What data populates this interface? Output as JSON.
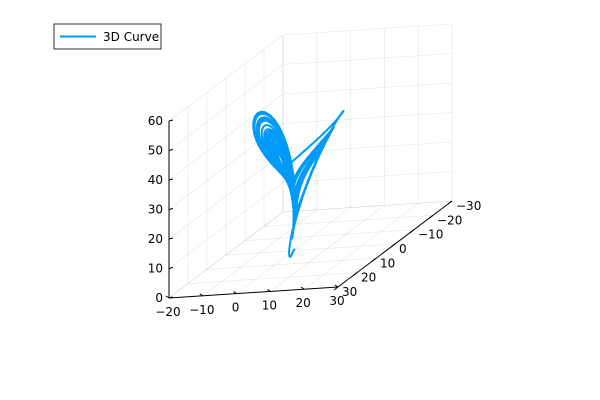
{
  "chart_data": {
    "type": "line",
    "subtype": "3d-curve",
    "title": "",
    "xlabel": "",
    "ylabel": "",
    "zlabel": "",
    "legend": {
      "placement": "top-left",
      "entries": [
        "3D Curve"
      ]
    },
    "grid": true,
    "line_color": "#009AF9",
    "axes": {
      "x": {
        "range": [
          -20,
          30
        ],
        "ticks": [
          -20,
          -10,
          0,
          10,
          20,
          30
        ],
        "tick_labels": [
          "−20",
          "−10",
          "0",
          "10",
          "20",
          "30"
        ]
      },
      "y": {
        "range": [
          -30,
          30
        ],
        "ticks": [
          -30,
          -20,
          -10,
          0,
          10,
          20,
          30
        ],
        "tick_labels": [
          "−30",
          "−20",
          "−10",
          "0",
          "10",
          "20",
          "30"
        ]
      },
      "z": {
        "range": [
          0,
          60
        ],
        "ticks": [
          0,
          10,
          20,
          30,
          40,
          50,
          60
        ],
        "tick_labels": [
          "0",
          "10",
          "20",
          "30",
          "40",
          "50",
          "60"
        ]
      }
    },
    "series": [
      {
        "name": "3D Curve",
        "description": "Lorenz attractor trajectory (sigma=10, rho=28, beta=8/3), starting near (1, 1, 1)"
      }
    ]
  }
}
